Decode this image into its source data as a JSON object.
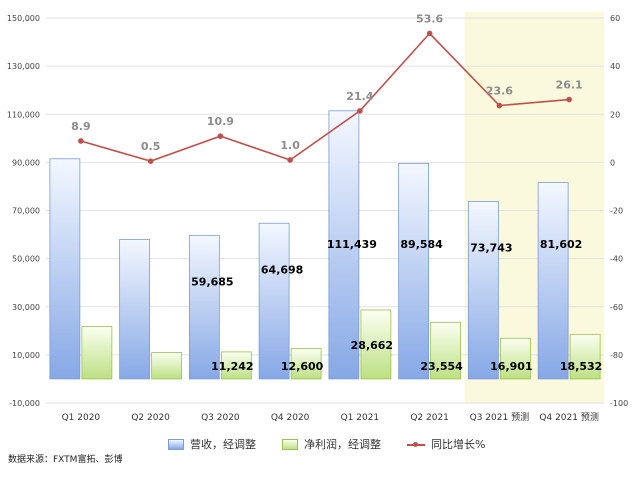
{
  "chart_data": {
    "type": "bar",
    "categories": [
      "Q1 2020",
      "Q2 2020",
      "Q3 2020",
      "Q4 2020",
      "Q1 2021",
      "Q2 2021",
      "Q3 2021 预测",
      "Q4 2021 预测"
    ],
    "series": [
      {
        "name": "营收，经调整",
        "type": "bar",
        "axis": "left",
        "color": "#86a8e6",
        "values": [
          91500,
          58000,
          59685,
          64698,
          111439,
          89584,
          73743,
          81602
        ],
        "labels": [
          "",
          "",
          "59,685",
          "64,698",
          "111,439",
          "89,584",
          "73,743",
          "81,602"
        ]
      },
      {
        "name": "净利润，经调整",
        "type": "bar",
        "axis": "left",
        "color": "#bde083",
        "values": [
          21800,
          11000,
          11242,
          12600,
          28662,
          23554,
          16901,
          18532
        ],
        "labels": [
          "",
          "",
          "11,242",
          "12,600",
          "28,662",
          "23,554",
          "16,901",
          "18,532"
        ]
      },
      {
        "name": "同比增长%",
        "type": "line",
        "axis": "right",
        "color": "#c0504d",
        "values": [
          8.9,
          0.5,
          10.9,
          1.0,
          21.4,
          53.6,
          23.6,
          26.1
        ],
        "labels": [
          "8.9",
          "0.5",
          "10.9",
          "1.0",
          "21.4",
          "53.6",
          "23.6",
          "26.1"
        ]
      }
    ],
    "y_left": {
      "ylim": [
        -10000,
        150000
      ],
      "ticks": [
        "-10,000",
        "10,000",
        "30,000",
        "50,000",
        "70,000",
        "90,000",
        "110,000",
        "130,000",
        "150,000"
      ]
    },
    "y_right": {
      "ylim": [
        -100,
        60
      ],
      "ticks": [
        "-100",
        "-80",
        "-60",
        "-40",
        "-20",
        "0",
        "20",
        "40",
        "60"
      ]
    },
    "forecast_categories": [
      "Q3 2021 预测",
      "Q4 2021 预测"
    ],
    "forecast_color": "#fbf9dd",
    "grid": true,
    "legend": "bottom",
    "source": "数据来源：FXTM富拓、彭博"
  }
}
